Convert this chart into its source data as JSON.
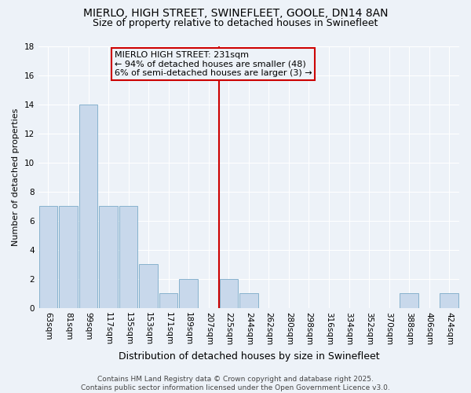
{
  "title": "MIERLO, HIGH STREET, SWINEFLEET, GOOLE, DN14 8AN",
  "subtitle": "Size of property relative to detached houses in Swinefleet",
  "xlabel": "Distribution of detached houses by size in Swinefleet",
  "ylabel": "Number of detached properties",
  "categories": [
    "63sqm",
    "81sqm",
    "99sqm",
    "117sqm",
    "135sqm",
    "153sqm",
    "171sqm",
    "189sqm",
    "207sqm",
    "225sqm",
    "244sqm",
    "262sqm",
    "280sqm",
    "298sqm",
    "316sqm",
    "334sqm",
    "352sqm",
    "370sqm",
    "388sqm",
    "406sqm",
    "424sqm"
  ],
  "bar_heights": [
    7,
    7,
    14,
    7,
    7,
    3,
    1,
    2,
    0,
    2,
    1,
    0,
    0,
    0,
    0,
    0,
    0,
    0,
    1,
    0,
    1
  ],
  "bar_color": "#c8d8eb",
  "bar_edge_color": "#7aaac8",
  "background_color": "#edf2f8",
  "grid_color": "#ffffff",
  "vline_x_index": 9,
  "vline_color": "#cc0000",
  "annotation_title": "MIERLO HIGH STREET: 231sqm",
  "annotation_line1": "← 94% of detached houses are smaller (48)",
  "annotation_line2": "6% of semi-detached houses are larger (3) →",
  "annotation_box_color": "#cc0000",
  "ylim": [
    0,
    18
  ],
  "yticks": [
    0,
    2,
    4,
    6,
    8,
    10,
    12,
    14,
    16,
    18
  ],
  "footer_line1": "Contains HM Land Registry data © Crown copyright and database right 2025.",
  "footer_line2": "Contains public sector information licensed under the Open Government Licence v3.0.",
  "title_fontsize": 10,
  "subtitle_fontsize": 9,
  "xlabel_fontsize": 9,
  "ylabel_fontsize": 8,
  "tick_fontsize": 7.5,
  "annotation_fontsize": 8,
  "footer_fontsize": 6.5
}
